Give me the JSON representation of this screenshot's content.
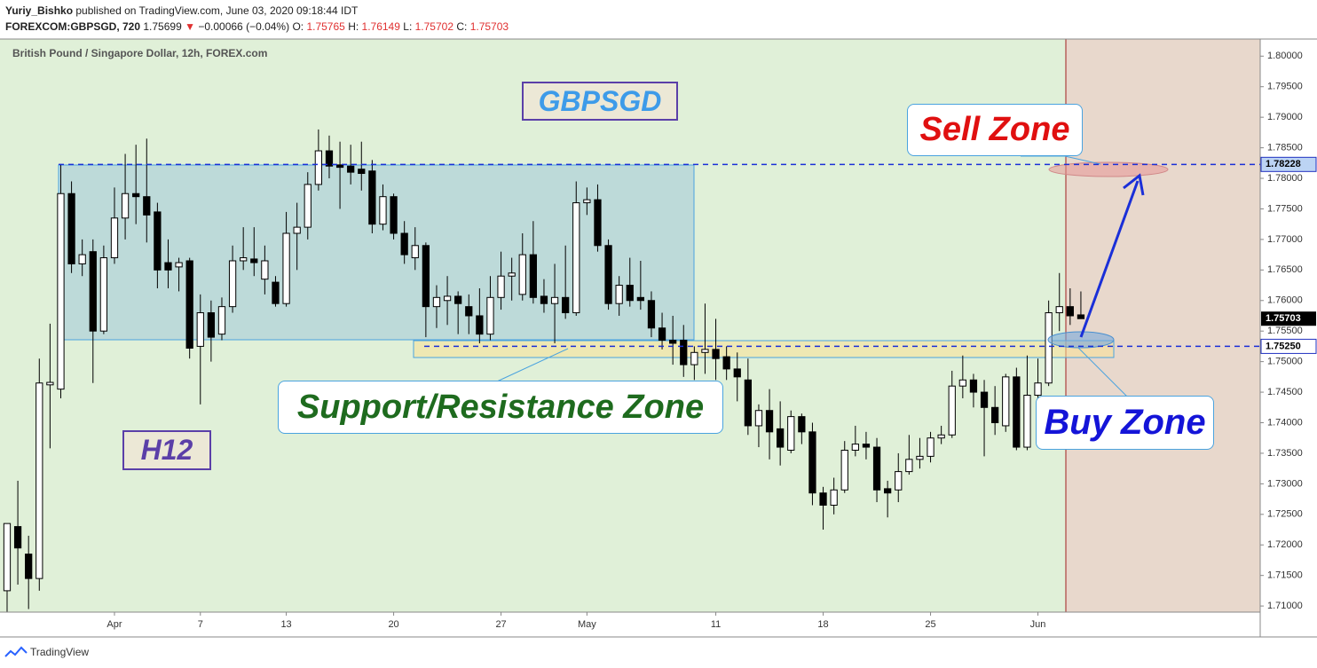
{
  "header": {
    "author": "Yuriy_Bishko",
    "published": "published on TradingView.com, June 03, 2020 09:18:44 IDT",
    "symbol": "FOREXCOM:GBPSGD, 720",
    "price": "1.75699",
    "change_arrow": "▼",
    "change": "−0.00066 (−0.04%)",
    "ohlc": [
      {
        "label": "O:",
        "value": "1.75765"
      },
      {
        "label": "H:",
        "value": "1.76149"
      },
      {
        "label": "L:",
        "value": "1.75702"
      },
      {
        "label": "C:",
        "value": "1.75703"
      }
    ]
  },
  "footer": {
    "brand": "TradingView"
  },
  "annotations": {
    "pair": "GBPSGD",
    "timeframe": "H12",
    "sell": "Sell Zone",
    "buy": "Buy Zone",
    "zone": "Support/Resistance Zone"
  },
  "chart_data": {
    "type": "candlestick",
    "title": "British Pound / Singapore Dollar, 12h, FOREX.com",
    "up_color": "#ffffff",
    "down_color": "#000000",
    "open": [
      1.7125,
      1.723,
      1.7185,
      1.7145,
      1.7462,
      1.7455,
      1.7775,
      1.766,
      1.768,
      1.755,
      1.767,
      1.7735,
      1.7775,
      1.777,
      1.7745,
      1.7662,
      1.7655,
      1.7665,
      1.7525,
      1.758,
      1.7545,
      1.759,
      1.7665,
      1.7668,
      1.7635,
      1.763,
      1.7595,
      1.771,
      1.772,
      1.779,
      1.7845,
      1.7822,
      1.782,
      1.7815,
      1.7812,
      1.7725,
      1.777,
      1.771,
      1.767,
      1.769,
      1.759,
      1.76,
      1.7607,
      1.759,
      1.7575,
      1.7545,
      1.7605,
      1.764,
      1.761,
      1.7675,
      1.7607,
      1.7595,
      1.7605,
      1.758,
      1.776,
      1.7765,
      1.769,
      1.7595,
      1.7625,
      1.7605,
      1.76,
      1.7555,
      1.7535,
      1.7535,
      1.7495,
      1.7515,
      1.752,
      1.7508,
      1.7488,
      1.747,
      1.7395,
      1.742,
      1.739,
      1.7355,
      1.741,
      1.7385,
      1.7285,
      1.7265,
      1.729,
      1.7355,
      1.7365,
      1.736,
      1.7292,
      1.729,
      1.732,
      1.734,
      1.7345,
      1.7375,
      1.738,
      1.746,
      1.747,
      1.745,
      1.7425,
      1.7395,
      1.7475,
      1.736,
      1.7445,
      1.7465,
      1.758,
      1.759,
      1.75765
    ],
    "high": [
      1.7235,
      1.7305,
      1.7215,
      1.7505,
      1.7562,
      1.7822,
      1.7795,
      1.77,
      1.77,
      1.769,
      1.7785,
      1.784,
      1.7855,
      1.7865,
      1.776,
      1.77,
      1.767,
      1.767,
      1.761,
      1.76,
      1.7605,
      1.769,
      1.772,
      1.772,
      1.769,
      1.764,
      1.7745,
      1.776,
      1.781,
      1.788,
      1.787,
      1.786,
      1.7855,
      1.786,
      1.783,
      1.779,
      1.7775,
      1.773,
      1.772,
      1.7695,
      1.7625,
      1.764,
      1.7615,
      1.761,
      1.762,
      1.764,
      1.768,
      1.767,
      1.771,
      1.773,
      1.7635,
      1.766,
      1.769,
      1.7795,
      1.7785,
      1.779,
      1.77,
      1.764,
      1.767,
      1.7665,
      1.7615,
      1.758,
      1.7575,
      1.756,
      1.7525,
      1.7595,
      1.757,
      1.7525,
      1.7515,
      1.7505,
      1.743,
      1.7455,
      1.7435,
      1.742,
      1.7415,
      1.74,
      1.7295,
      1.731,
      1.737,
      1.7395,
      1.7385,
      1.7375,
      1.7305,
      1.735,
      1.738,
      1.7375,
      1.7385,
      1.7395,
      1.7485,
      1.751,
      1.748,
      1.747,
      1.746,
      1.748,
      1.749,
      1.751,
      1.7505,
      1.76,
      1.7645,
      1.762,
      1.76149
    ],
    "low": [
      1.709,
      1.7135,
      1.7095,
      1.7125,
      1.7358,
      1.744,
      1.7645,
      1.764,
      1.7465,
      1.7545,
      1.766,
      1.77,
      1.7725,
      1.7695,
      1.762,
      1.762,
      1.7615,
      1.7505,
      1.743,
      1.75,
      1.7535,
      1.758,
      1.765,
      1.764,
      1.761,
      1.759,
      1.759,
      1.765,
      1.77,
      1.778,
      1.78,
      1.775,
      1.779,
      1.778,
      1.771,
      1.7715,
      1.77,
      1.766,
      1.765,
      1.754,
      1.7555,
      1.756,
      1.7545,
      1.7545,
      1.753,
      1.7535,
      1.7585,
      1.76,
      1.76,
      1.7595,
      1.758,
      1.753,
      1.757,
      1.7575,
      1.774,
      1.768,
      1.7585,
      1.7575,
      1.759,
      1.7585,
      1.754,
      1.752,
      1.7495,
      1.7475,
      1.747,
      1.748,
      1.747,
      1.747,
      1.7435,
      1.738,
      1.736,
      1.734,
      1.733,
      1.735,
      1.7365,
      1.7265,
      1.7225,
      1.725,
      1.7285,
      1.7345,
      1.734,
      1.727,
      1.7245,
      1.727,
      1.7315,
      1.7325,
      1.7335,
      1.7365,
      1.7375,
      1.744,
      1.7425,
      1.7345,
      1.738,
      1.7385,
      1.7355,
      1.7355,
      1.744,
      1.746,
      1.755,
      1.756,
      1.75702
    ],
    "close": [
      1.7235,
      1.7195,
      1.7145,
      1.7465,
      1.7466,
      1.7775,
      1.766,
      1.7675,
      1.755,
      1.767,
      1.7735,
      1.7775,
      1.777,
      1.774,
      1.765,
      1.765,
      1.7662,
      1.7522,
      1.758,
      1.754,
      1.759,
      1.7665,
      1.767,
      1.7662,
      1.7665,
      1.7595,
      1.771,
      1.772,
      1.779,
      1.7845,
      1.782,
      1.7818,
      1.781,
      1.7808,
      1.7725,
      1.777,
      1.771,
      1.7675,
      1.769,
      1.759,
      1.7605,
      1.7607,
      1.7595,
      1.7575,
      1.7545,
      1.7605,
      1.764,
      1.7645,
      1.7675,
      1.7605,
      1.7595,
      1.7605,
      1.758,
      1.776,
      1.7765,
      1.769,
      1.7595,
      1.7625,
      1.76,
      1.76,
      1.7555,
      1.7535,
      1.753,
      1.7495,
      1.7515,
      1.752,
      1.7505,
      1.7488,
      1.7475,
      1.7395,
      1.742,
      1.7385,
      1.736,
      1.741,
      1.7385,
      1.7285,
      1.7265,
      1.729,
      1.7355,
      1.7365,
      1.736,
      1.729,
      1.7285,
      1.732,
      1.734,
      1.7345,
      1.7375,
      1.738,
      1.746,
      1.747,
      1.745,
      1.7425,
      1.74,
      1.7475,
      1.736,
      1.7445,
      1.7465,
      1.758,
      1.759,
      1.7575,
      1.75703
    ],
    "xlim": [
      -0.66,
      116.7
    ],
    "xticks": [
      {
        "value": 10,
        "label": "Apr"
      },
      {
        "value": 18,
        "label": "7"
      },
      {
        "value": 26,
        "label": "13"
      },
      {
        "value": 36,
        "label": "20"
      },
      {
        "value": 46,
        "label": "27"
      },
      {
        "value": 54,
        "label": "May"
      },
      {
        "value": 66,
        "label": "11"
      },
      {
        "value": 76,
        "label": "18"
      },
      {
        "value": 86,
        "label": "25"
      },
      {
        "value": 96,
        "label": "Jun"
      }
    ],
    "ylim": [
      1.709,
      1.8028
    ],
    "yticks": [
      {
        "value": 1.71,
        "label": "1.71000"
      },
      {
        "value": 1.715,
        "label": "1.71500"
      },
      {
        "value": 1.72,
        "label": "1.72000"
      },
      {
        "value": 1.725,
        "label": "1.72500"
      },
      {
        "value": 1.73,
        "label": "1.73000"
      },
      {
        "value": 1.735,
        "label": "1.73500"
      },
      {
        "value": 1.74,
        "label": "1.74000"
      },
      {
        "value": 1.745,
        "label": "1.74500"
      },
      {
        "value": 1.75,
        "label": "1.75000"
      },
      {
        "value": 1.755,
        "label": "1.75500"
      },
      {
        "value": 1.76,
        "label": "1.76000"
      },
      {
        "value": 1.765,
        "label": "1.76500"
      },
      {
        "value": 1.77,
        "label": "1.77000"
      },
      {
        "value": 1.775,
        "label": "1.77500"
      },
      {
        "value": 1.78,
        "label": "1.78000"
      },
      {
        "value": 1.785,
        "label": "1.78500"
      },
      {
        "value": 1.79,
        "label": "1.79000"
      },
      {
        "value": 1.795,
        "label": "1.79500"
      },
      {
        "value": 1.8,
        "label": "1.80000"
      }
    ],
    "levels": [
      {
        "value": 1.78228,
        "label": "1.78228"
      },
      {
        "value": 1.7525,
        "label": "1.75250"
      }
    ],
    "grid": false
  }
}
